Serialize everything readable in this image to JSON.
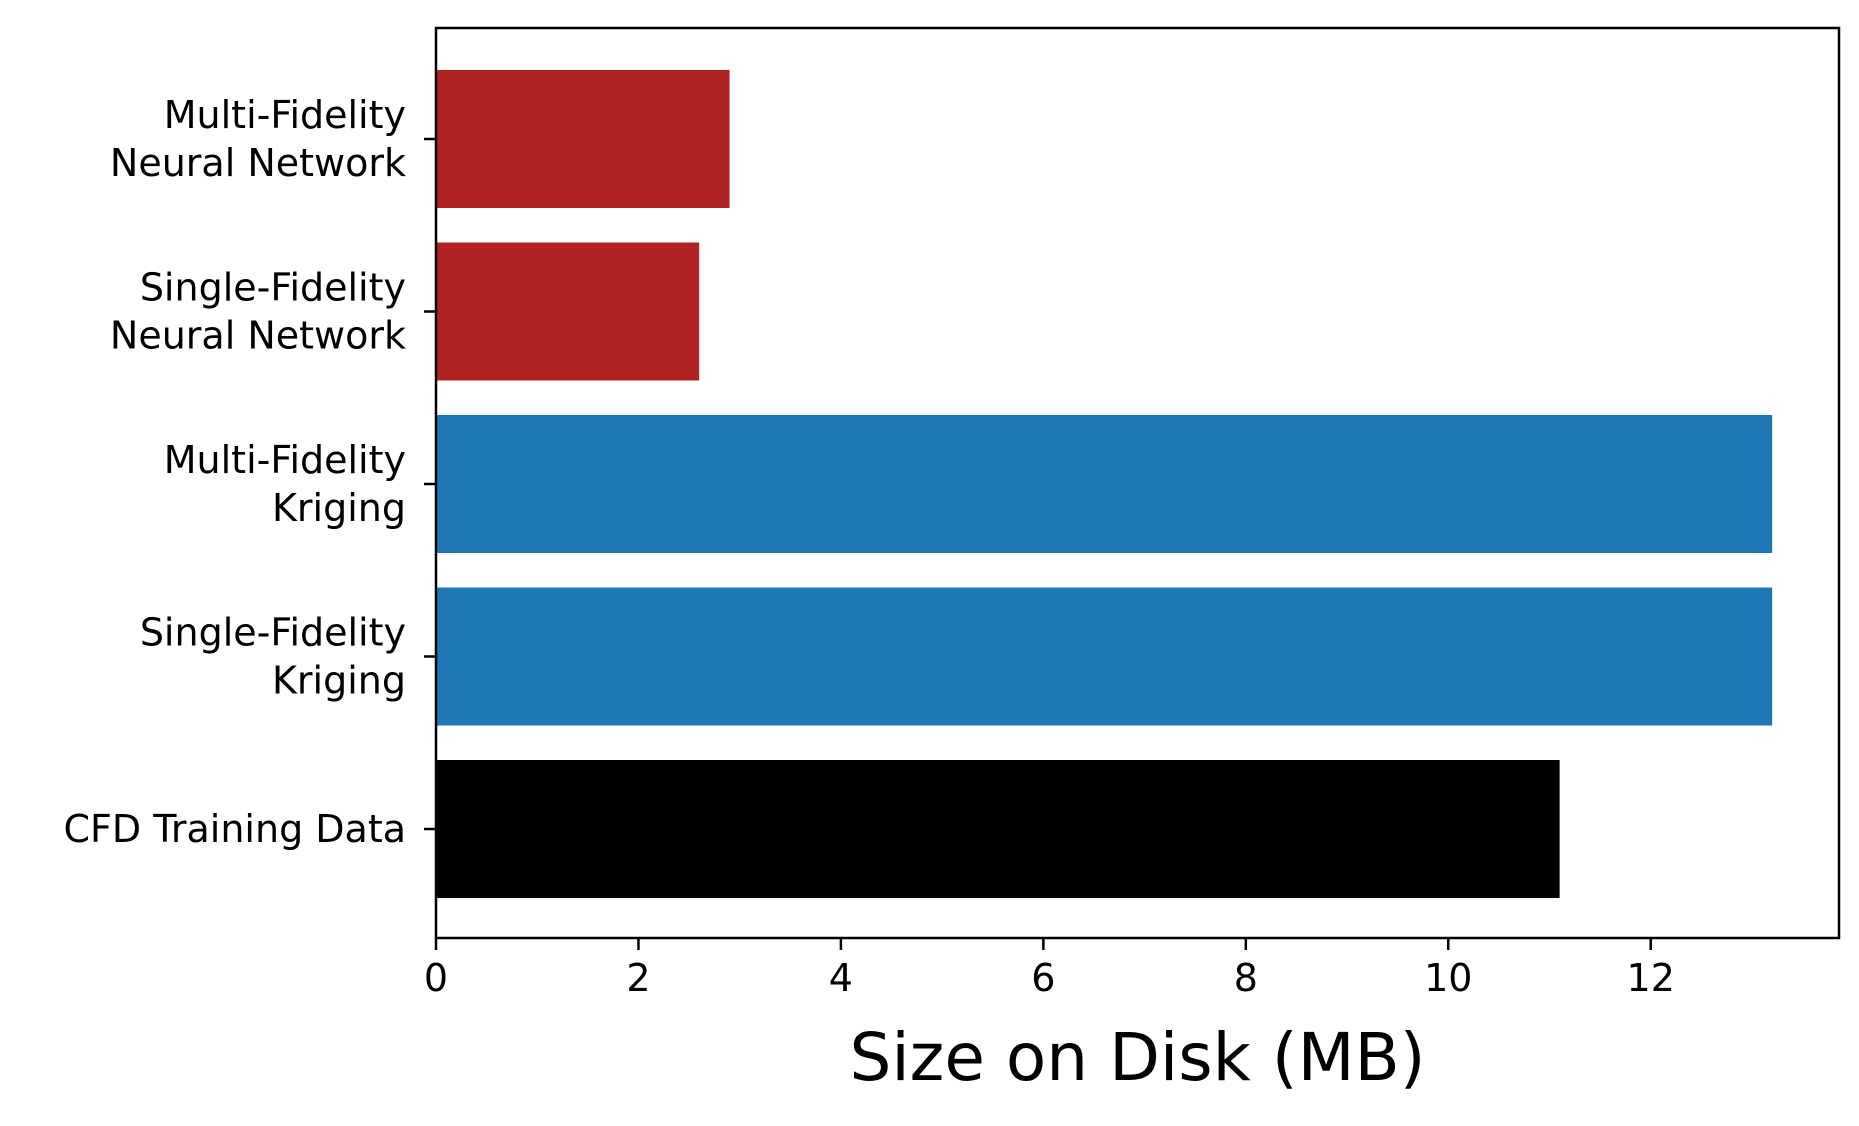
{
  "chart_data": {
    "type": "bar",
    "orientation": "horizontal",
    "categories": [
      "Multi-Fidelity\nNeural Network",
      "Single-Fidelity\nNeural Network",
      "Multi-Fidelity\nKriging",
      "Single-Fidelity\nKriging",
      "CFD Training Data"
    ],
    "values": [
      2.9,
      2.6,
      13.2,
      13.2,
      11.1
    ],
    "bar_colors": [
      "#b22222",
      "#b22222",
      "#1f77b4",
      "#1f77b4",
      "#000000"
    ],
    "xlabel": "Size on Disk (MB)",
    "ylabel": "",
    "title": "",
    "xlim": [
      0,
      13.86
    ],
    "xticks": [
      0,
      2,
      4,
      6,
      8,
      10,
      12
    ],
    "grid": false,
    "legend": "none"
  }
}
